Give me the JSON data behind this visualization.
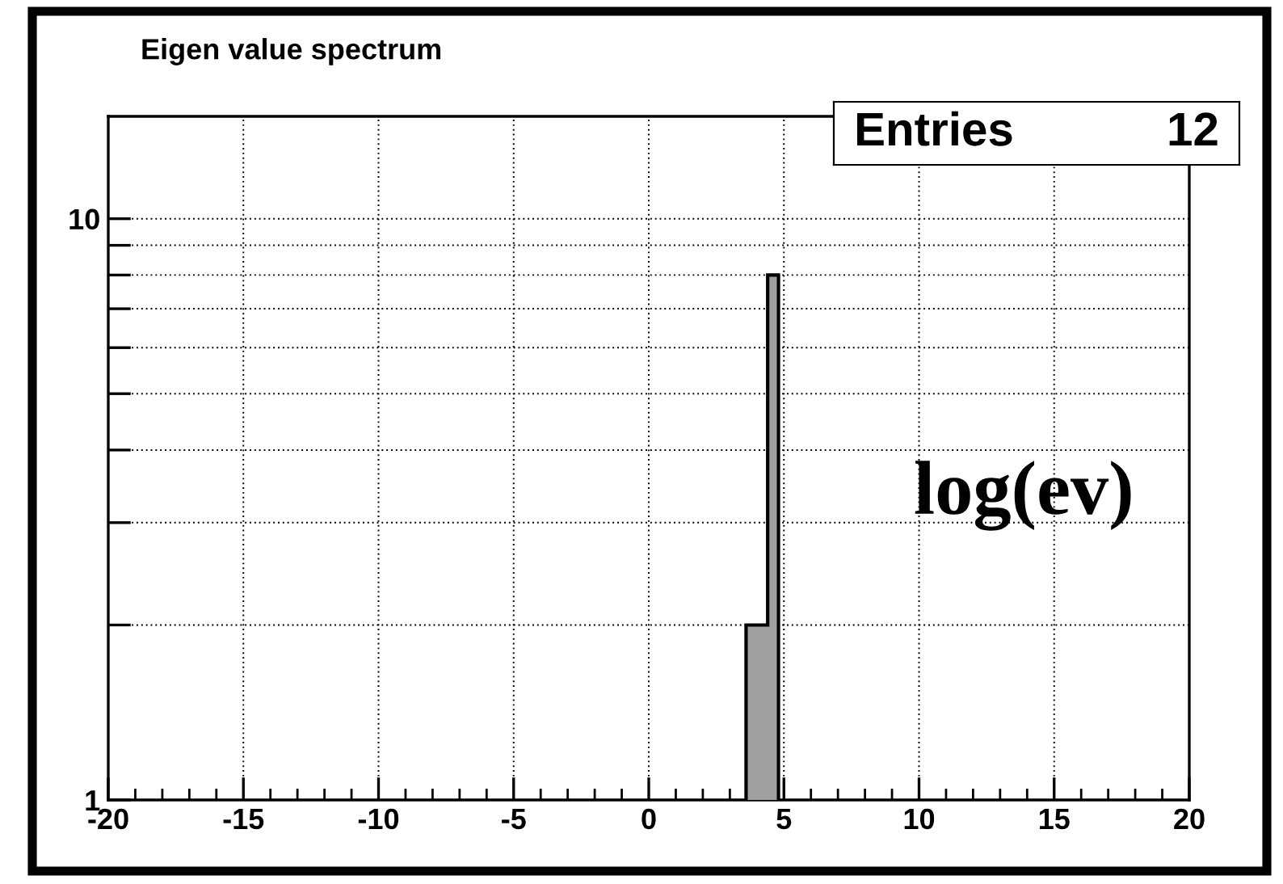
{
  "chart_data": {
    "type": "histogram",
    "title": "Eigen value spectrum",
    "bins": [
      3.6,
      4.0,
      4.4,
      4.8
    ],
    "values": [
      2,
      2,
      8
    ],
    "color": "#a0a0a0",
    "xlim": [
      -20,
      20
    ],
    "xticks": [
      -20,
      -15,
      -10,
      -5,
      0,
      5,
      10,
      15,
      20
    ],
    "ylim": [
      1,
      15
    ],
    "log": true,
    "yticks": [
      1,
      {
        "value": 2,
        "label": null
      },
      {
        "value": 3,
        "label": null
      },
      {
        "value": 4,
        "label": null
      },
      {
        "value": 5,
        "label": null
      },
      {
        "value": 6,
        "label": null
      },
      {
        "value": 7,
        "label": null
      },
      {
        "value": 8,
        "label": null
      },
      {
        "value": 9,
        "label": null
      },
      10
    ],
    "grid": true,
    "annotations": [
      "log(ev)",
      "Entries",
      "12"
    ]
  }
}
